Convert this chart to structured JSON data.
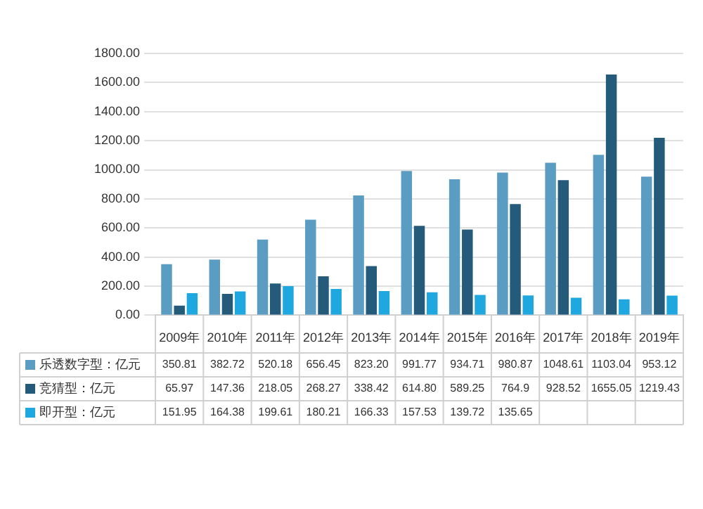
{
  "chart_data": {
    "type": "bar",
    "categories": [
      "2009年",
      "2010年",
      "2011年",
      "2012年",
      "2013年",
      "2014年",
      "2015年",
      "2016年",
      "2017年",
      "2018年",
      "2019年"
    ],
    "series": [
      {
        "name": "乐透数字型：亿元",
        "color": "#5a9cc2",
        "values": [
          350.81,
          382.72,
          520.18,
          656.45,
          823.2,
          991.77,
          934.71,
          980.87,
          1048.61,
          1103.04,
          953.12
        ],
        "value_labels": [
          "350.81",
          "382.72",
          "520.18",
          "656.45",
          "823.20",
          "991.77",
          "934.71",
          "980.87",
          "1048.61",
          "1103.04",
          "953.12"
        ]
      },
      {
        "name": "竞猜型：亿元",
        "color": "#245a7a",
        "values": [
          65.97,
          147.36,
          218.05,
          268.27,
          338.42,
          614.8,
          589.25,
          764.9,
          928.52,
          1655.05,
          1219.43
        ],
        "value_labels": [
          "65.97",
          "147.36",
          "218.05",
          "268.27",
          "338.42",
          "614.80",
          "589.25",
          "764.9",
          "928.52",
          "1655.05",
          "1219.43"
        ]
      },
      {
        "name": "即开型：亿元",
        "color": "#1fa8e0",
        "values": [
          151.95,
          164.38,
          199.61,
          180.21,
          166.33,
          157.53,
          139.72,
          135.65,
          120,
          110,
          135
        ],
        "value_labels": [
          "151.95",
          "164.38",
          "199.61",
          "180.21",
          "166.33",
          "157.53",
          "139.72",
          "135.65",
          null,
          null,
          null
        ]
      }
    ],
    "ylim": [
      0,
      1800
    ],
    "yticks": [
      {
        "value": 0,
        "label": "0.00"
      },
      {
        "value": 200,
        "label": "200.00"
      },
      {
        "value": 400,
        "label": "400.00"
      },
      {
        "value": 600,
        "label": "600.00"
      },
      {
        "value": 800,
        "label": "800.00"
      },
      {
        "value": 1000,
        "label": "1000.00"
      },
      {
        "value": 1200,
        "label": "1200.00"
      },
      {
        "value": 1400,
        "label": "1400.00"
      },
      {
        "value": 1600,
        "label": "1600.00"
      },
      {
        "value": 1800,
        "label": "1800.00"
      }
    ],
    "grid": "y",
    "legend": "bottom"
  }
}
